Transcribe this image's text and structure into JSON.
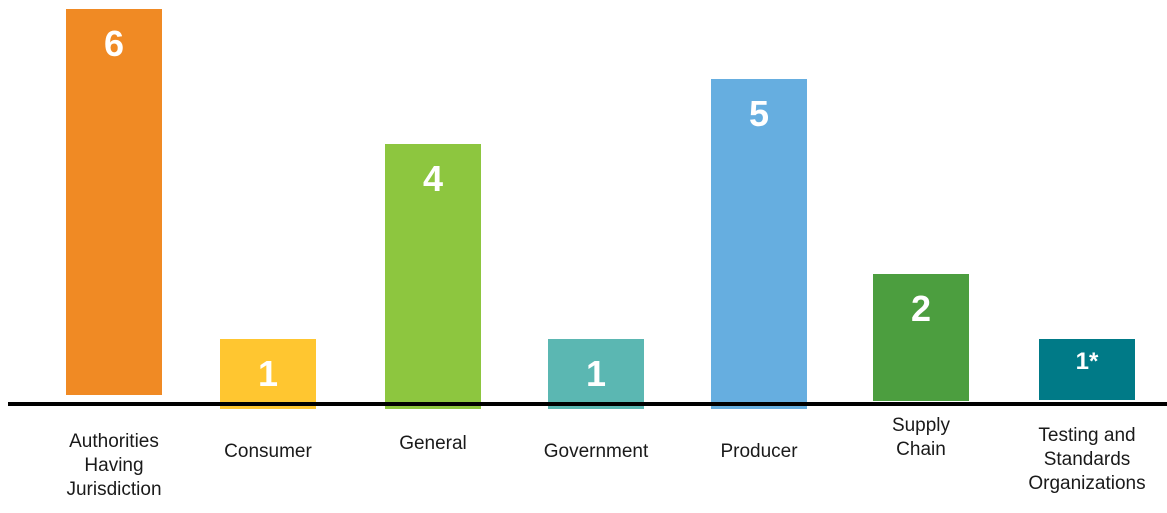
{
  "chart_data": {
    "type": "bar",
    "title": "",
    "xlabel": "",
    "ylabel": "",
    "ylim": [
      0,
      6
    ],
    "grid": false,
    "legend": "none",
    "categories": [
      "Authorities Having Jurisdiction",
      "Consumer",
      "General",
      "Government",
      "Producer",
      "Supply Chain",
      "Testing and Standards Organizations"
    ],
    "values": [
      6,
      1,
      4,
      1,
      5,
      2,
      1
    ],
    "data_labels": [
      "6",
      "1",
      "4",
      "1",
      "5",
      "2",
      "1*"
    ],
    "colors": [
      "#F08A24",
      "#FFC630",
      "#8DC63F",
      "#5BB7B2",
      "#66AEE0",
      "#4C9E3F",
      "#007A87"
    ]
  }
}
